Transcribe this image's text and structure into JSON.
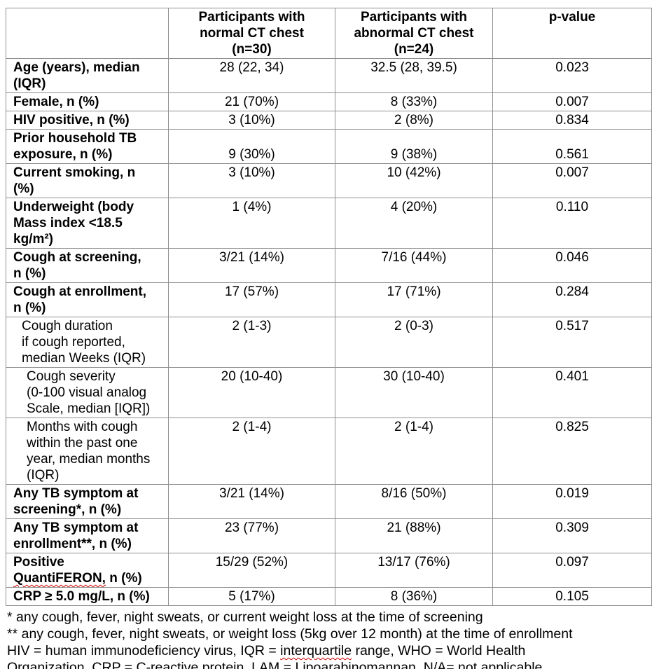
{
  "table": {
    "headers": [
      "",
      "Participants with\nnormal CT chest\n(n=30)",
      "Participants with\nabnormal CT chest\n(n=24)",
      "p-value"
    ],
    "rows": [
      {
        "label": "Age (years), median\n(IQR)",
        "normal": "28 (22, 34)",
        "abnormal": "32.5 (28, 39.5)",
        "p": "0.023",
        "bold": true,
        "indent": 0,
        "valign": "top"
      },
      {
        "label": "Female, n (%)",
        "normal": "21 (70%)",
        "abnormal": "8 (33%)",
        "p": "0.007",
        "bold": true,
        "indent": 0,
        "valign": "top"
      },
      {
        "label": "HIV positive, n (%)",
        "normal": "3 (10%)",
        "abnormal": "2 (8%)",
        "p": "0.834",
        "bold": true,
        "indent": 0,
        "valign": "top"
      },
      {
        "label": "Prior household TB\nexposure, n (%)",
        "normal": "9 (30%)",
        "abnormal": "9 (38%)",
        "p": "0.561",
        "bold": true,
        "indent": 0,
        "valign": "bottom"
      },
      {
        "label": "Current smoking, n\n(%)",
        "normal": "3 (10%)",
        "abnormal": "10 (42%)",
        "p": "0.007",
        "bold": true,
        "indent": 0,
        "valign": "top"
      },
      {
        "label": "Underweight (body\nMass index <18.5\nkg/m²)",
        "normal": "1 (4%)",
        "abnormal": "4 (20%)",
        "p": "0.110",
        "bold": true,
        "indent": 0,
        "valign": "top"
      },
      {
        "label": "Cough at screening,\nn (%)",
        "normal": "3/21 (14%)",
        "abnormal": "7/16 (44%)",
        "p": "0.046",
        "bold": true,
        "indent": 0,
        "valign": "top"
      },
      {
        "label": "Cough at enrollment,\nn (%)",
        "normal": "17 (57%)",
        "abnormal": "17 (71%)",
        "p": "0.284",
        "bold": true,
        "indent": 0,
        "valign": "top"
      },
      {
        "label": "Cough duration\nif cough reported,\nmedian Weeks (IQR)",
        "normal": "2 (1-3)",
        "abnormal": "2 (0-3)",
        "p": "0.517",
        "bold": false,
        "indent": 1,
        "valign": "top"
      },
      {
        "label": "Cough severity\n(0-100 visual analog\nScale, median [IQR])",
        "normal": "20 (10-40)",
        "abnormal": "30 (10-40)",
        "p": "0.401",
        "bold": false,
        "indent": 2,
        "valign": "top"
      },
      {
        "label": "Months with cough\nwithin the past one\nyear, median months\n(IQR)",
        "normal": "2 (1-4)",
        "abnormal": "2 (1-4)",
        "p": "0.825",
        "bold": false,
        "indent": 2,
        "valign": "top"
      },
      {
        "label": "Any TB symptom at\nscreening*, n (%)",
        "normal": "3/21 (14%)",
        "abnormal": "8/16 (50%)",
        "p": "0.019",
        "bold": true,
        "indent": 0,
        "valign": "top"
      },
      {
        "label": "Any TB symptom at\nenrollment**, n (%)",
        "normal": "23 (77%)",
        "abnormal": "21 (88%)",
        "p": "0.309",
        "bold": true,
        "indent": 0,
        "valign": "top"
      },
      {
        "label": "Positive\n~~QuantiFERON,~~ n (%)",
        "normal": "15/29 (52%)",
        "abnormal": "13/17 (76%)",
        "p": "0.097",
        "bold": true,
        "indent": 0,
        "valign": "top"
      },
      {
        "label": "CRP ≥ 5.0 mg/L, n (%)",
        "normal": "5 (17%)",
        "abnormal": "8 (36%)",
        "p": "0.105",
        "bold": true,
        "indent": 0,
        "valign": "top"
      }
    ]
  },
  "footnotes": [
    "* any cough, fever, night sweats, or current weight loss at the time of screening",
    "** any cough, fever, night sweats, or weight loss (5kg over 12 month) at the time of enrollment",
    "HIV = human immunodeficiency virus, IQR = ~~interquartile~~ range, WHO = World Health\nOrganization, CRP = C-reactive protein, LAM = ~~Lipoarabinomannan,~~ N/A= not applicable"
  ],
  "colors": {
    "table_border": "#8f8f8f",
    "text": "#000000",
    "spellcheck_underline": "#cc0000"
  }
}
